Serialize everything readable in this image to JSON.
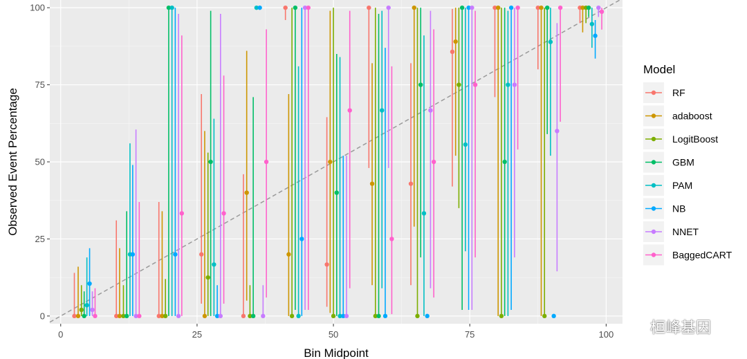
{
  "chart_data": {
    "type": "scatter",
    "xlabel": "Bin Midpoint",
    "ylabel": "Observed Event Percentage",
    "xlim": [
      -2,
      103
    ],
    "ylim": [
      -2.5,
      102.5
    ],
    "x_ticks": [
      0,
      25,
      50,
      75,
      100
    ],
    "y_ticks": [
      0,
      25,
      50,
      75,
      100
    ],
    "grid": true,
    "reference_line": {
      "type": "diagonal",
      "from": [
        -2,
        -2
      ],
      "to": [
        103,
        103
      ],
      "style": "dashed"
    },
    "legend": {
      "title": "Model",
      "position": "right"
    },
    "error_bars": "vertical",
    "series": [
      {
        "name": "RF",
        "color": "#F8766D",
        "points": [
          [
            2.5,
            0,
            0,
            14
          ],
          [
            10.2,
            0,
            0,
            31
          ],
          [
            18,
            0,
            0,
            37
          ],
          [
            25.8,
            20,
            4,
            72
          ],
          [
            33.5,
            0,
            0,
            46
          ],
          [
            41.2,
            100,
            96,
            100
          ],
          [
            48.8,
            16.7,
            3,
            64.5
          ],
          [
            56.5,
            100,
            48,
            100
          ],
          [
            64.2,
            42.9,
            10,
            82
          ],
          [
            71.8,
            85.7,
            42,
            99.6
          ],
          [
            79.6,
            100,
            71,
            100
          ],
          [
            87.5,
            100,
            80,
            100
          ],
          [
            95.2,
            100,
            95,
            100
          ]
        ]
      },
      {
        "name": "adaboost",
        "color": "#CD9600",
        "points": [
          [
            3.2,
            0,
            0,
            16
          ],
          [
            10.8,
            0,
            0,
            22
          ],
          [
            18.6,
            0,
            0,
            34
          ],
          [
            26.4,
            0,
            0,
            60
          ],
          [
            34.1,
            40,
            5,
            86
          ],
          [
            41.8,
            20,
            0,
            72
          ],
          [
            49.4,
            50,
            1,
            99
          ],
          [
            57.1,
            42.9,
            10,
            82
          ],
          [
            64.8,
            100,
            29,
            100
          ],
          [
            72.4,
            89,
            52,
            100
          ],
          [
            80.2,
            100,
            0,
            100
          ],
          [
            88.1,
            100,
            0,
            100
          ],
          [
            95.7,
            100,
            92,
            100
          ]
        ]
      },
      {
        "name": "LogitBoost",
        "color": "#7CAE00",
        "points": [
          [
            3.8,
            2,
            0,
            10
          ],
          [
            11.5,
            0,
            0,
            10
          ],
          [
            19.2,
            0,
            0,
            12
          ],
          [
            27,
            12.5,
            0,
            53
          ],
          [
            34.7,
            0,
            0,
            10
          ],
          [
            42.4,
            0,
            0,
            100
          ],
          [
            50,
            0,
            0,
            100
          ],
          [
            57.7,
            0,
            0,
            100
          ],
          [
            65.4,
            0,
            0,
            100
          ],
          [
            73,
            75,
            35,
            100
          ],
          [
            80.8,
            0,
            0,
            100
          ],
          [
            88.7,
            0,
            0,
            100
          ],
          [
            96.3,
            100,
            95,
            100
          ]
        ]
      },
      {
        "name": "GBM",
        "color": "#00BE67",
        "points": [
          [
            4.3,
            0,
            0,
            8
          ],
          [
            12.1,
            0,
            0,
            34
          ],
          [
            19.8,
            100,
            0,
            100
          ],
          [
            27.5,
            50,
            0,
            99
          ],
          [
            35.3,
            0,
            0,
            71
          ],
          [
            43,
            100,
            2,
            100
          ],
          [
            50.6,
            40,
            0,
            85
          ],
          [
            58.3,
            0,
            0,
            98
          ],
          [
            66,
            75,
            19,
            100
          ],
          [
            73.6,
            100,
            2,
            100
          ],
          [
            81.4,
            50,
            0,
            100
          ],
          [
            89.2,
            100,
            59,
            100
          ],
          [
            96.8,
            100,
            97,
            100
          ]
        ]
      },
      {
        "name": "PAM",
        "color": "#00BFC4",
        "points": [
          [
            4.8,
            3.5,
            0,
            19
          ],
          [
            12.7,
            20,
            0,
            56
          ],
          [
            20.4,
            100,
            0,
            100
          ],
          [
            28.1,
            16.7,
            0,
            64
          ],
          [
            35.9,
            100,
            100,
            100
          ],
          [
            43.6,
            0,
            0,
            81
          ],
          [
            51.2,
            0,
            0,
            84
          ],
          [
            58.9,
            66.7,
            9,
            99
          ],
          [
            66.6,
            33.3,
            0,
            91
          ],
          [
            74.2,
            55.6,
            21,
            100
          ],
          [
            82,
            75,
            0,
            99
          ],
          [
            89.8,
            88.9,
            52,
            100
          ],
          [
            97.4,
            94.7,
            87,
            100
          ]
        ]
      },
      {
        "name": "NB",
        "color": "#00A9FF",
        "points": [
          [
            5.3,
            10.5,
            0,
            22
          ],
          [
            13.2,
            20,
            0,
            49
          ],
          [
            21,
            20,
            0,
            100
          ],
          [
            28.7,
            0,
            0,
            10
          ],
          [
            36.5,
            100,
            100,
            100
          ],
          [
            44.2,
            25,
            0,
            100
          ],
          [
            51.8,
            0,
            0,
            52
          ],
          [
            59.5,
            0,
            0,
            87
          ],
          [
            67.2,
            0,
            0,
            0
          ],
          [
            74.8,
            100,
            2,
            100
          ],
          [
            82.6,
            100,
            2,
            100
          ],
          [
            90.4,
            0,
            0,
            0
          ],
          [
            98,
            90.9,
            83.5,
            96
          ]
        ]
      },
      {
        "name": "NNET",
        "color": "#C77CFF",
        "points": [
          [
            5.8,
            2,
            0,
            8
          ],
          [
            13.8,
            0,
            0,
            60.5
          ],
          [
            21.6,
            0,
            0,
            98
          ],
          [
            29.3,
            0,
            0,
            98
          ],
          [
            37.1,
            0,
            0,
            10
          ],
          [
            44.8,
            100,
            2,
            100
          ],
          [
            52.4,
            0,
            0,
            52
          ],
          [
            60.1,
            100,
            48,
            100
          ],
          [
            67.8,
            66.7,
            9,
            99
          ],
          [
            75.4,
            100,
            2,
            100
          ],
          [
            83.2,
            75,
            19,
            100
          ],
          [
            91,
            60,
            14.5,
            95
          ],
          [
            98.6,
            100,
            97,
            100
          ]
        ]
      },
      {
        "name": "BaggedCART",
        "color": "#FF61CC",
        "points": [
          [
            6.3,
            0,
            0,
            9
          ],
          [
            14.4,
            0,
            0,
            37
          ],
          [
            22.2,
            33.3,
            0,
            91
          ],
          [
            29.9,
            33.3,
            4,
            78
          ],
          [
            37.7,
            50,
            6,
            93
          ],
          [
            45.4,
            100,
            2,
            100
          ],
          [
            53,
            66.7,
            9,
            99
          ],
          [
            60.7,
            25,
            0.6,
            81
          ],
          [
            68.4,
            50,
            6,
            93
          ],
          [
            76,
            75,
            19,
            99
          ],
          [
            83.8,
            100,
            54,
            100
          ],
          [
            91.6,
            100,
            63,
            100
          ],
          [
            99.2,
            98.7,
            92.9,
            100
          ]
        ]
      }
    ]
  },
  "watermark": {
    "text": "桓峰基因"
  },
  "colors": {
    "panel": "#EBEBEB",
    "grid": "#FFFFFF",
    "reference_line": "#9A9A9A"
  }
}
